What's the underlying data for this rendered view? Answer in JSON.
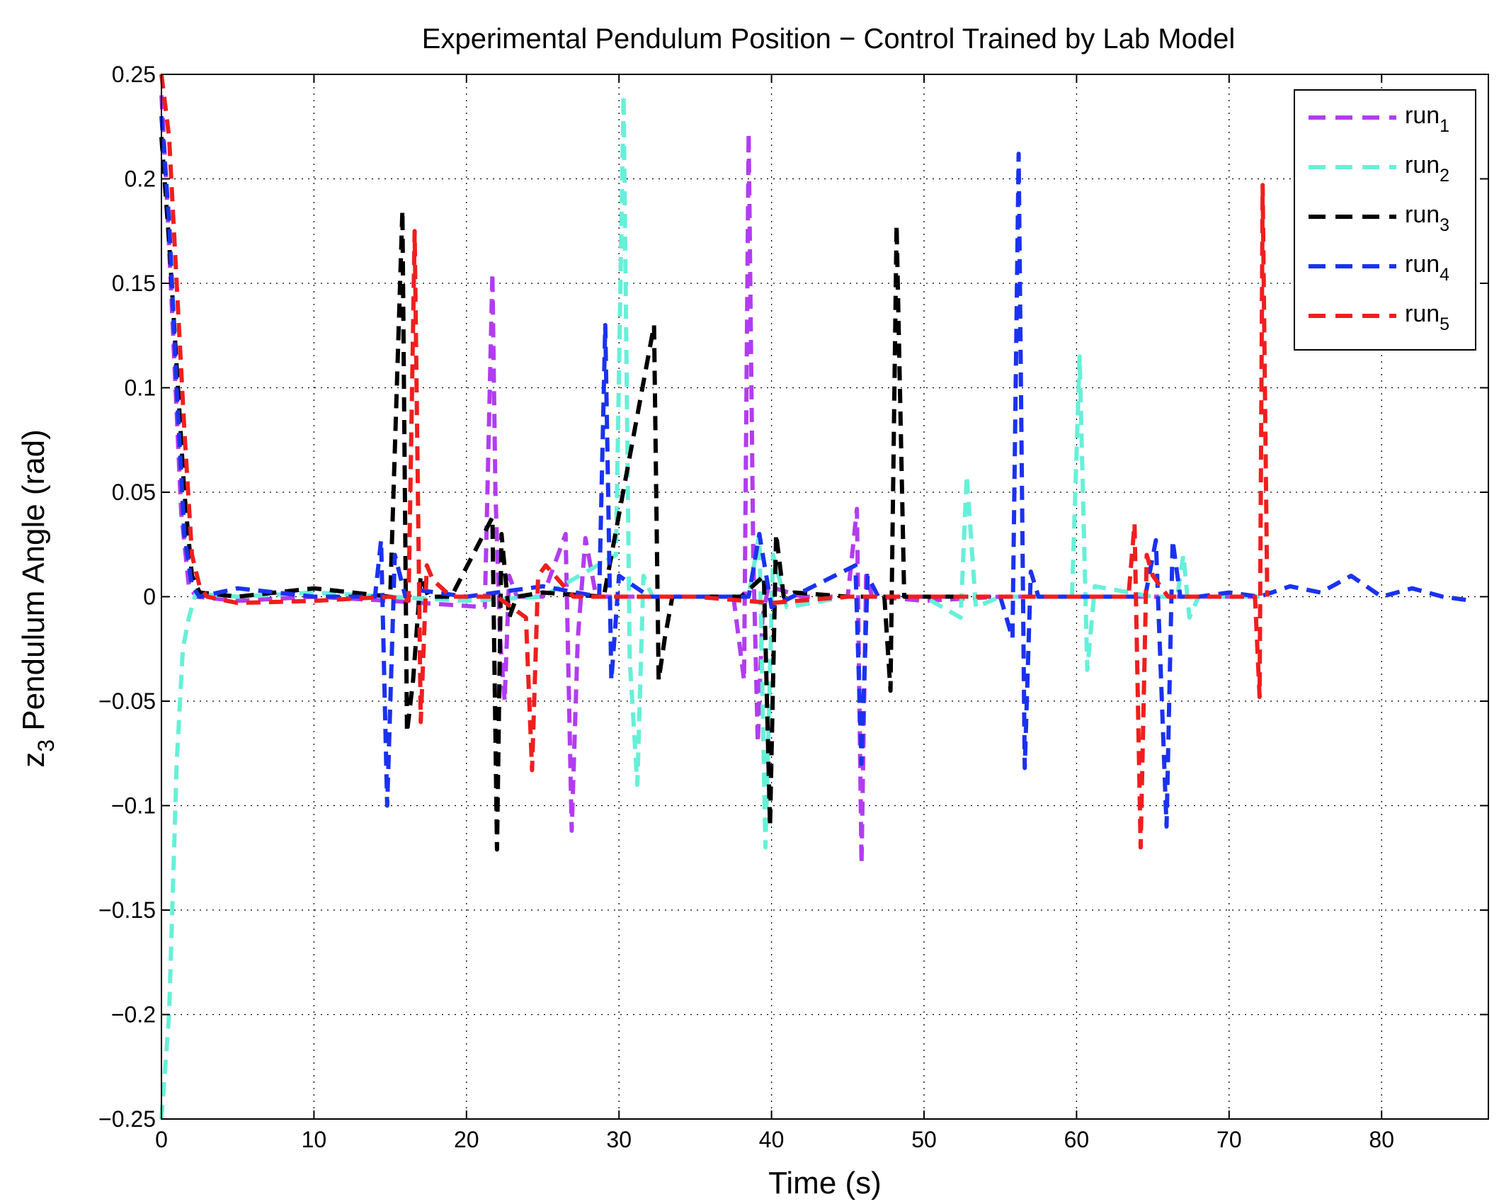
{
  "chart_data": {
    "type": "line",
    "title": "Experimental Pendulum Position − Control Trained by Lab Model",
    "xlabel": "Time (s)",
    "ylabel": {
      "base": "z",
      "sub": "3",
      "rest": " Pendulum Angle (rad)"
    },
    "xlim": [
      0,
      87
    ],
    "ylim": [
      -0.25,
      0.25
    ],
    "grid": true,
    "legend_position": "top-right",
    "x_ticks": [
      0,
      10,
      20,
      30,
      40,
      50,
      60,
      70,
      80
    ],
    "x_tick_labels": [
      "0",
      "10",
      "20",
      "30",
      "40",
      "50",
      "60",
      "70",
      "80"
    ],
    "y_ticks": [
      0.25,
      0.2,
      0.15,
      0.1,
      0.05,
      0,
      -0.05,
      -0.1,
      -0.15,
      -0.2,
      -0.25
    ],
    "y_tick_labels": [
      "0.25",
      "0.2",
      "0.15",
      "0.1",
      "0.05",
      "0",
      "−0.05",
      "−0.1",
      "−0.15",
      "−0.2",
      "−0.25"
    ],
    "series": [
      {
        "name": "run",
        "sub": "1",
        "color": "#b23cf0",
        "x": [
          0,
          0.3,
          0.8,
          1.3,
          1.8,
          2.3,
          5,
          10,
          15,
          21.2,
          21.7,
          21.9,
          22.2,
          22.5,
          22.8,
          23.3,
          25,
          26.5,
          26.9,
          27.3,
          27.8,
          28.5,
          30,
          35,
          37.5,
          38.2,
          38.5,
          38.8,
          39.1,
          39.4,
          39.8,
          42,
          45,
          45.6,
          45.9,
          46.2,
          46.6,
          47,
          50,
          55,
          60,
          65,
          70,
          72
        ],
        "y": [
          0.24,
          0.2,
          0.12,
          0.04,
          0.005,
          0,
          -0.002,
          0,
          -0.002,
          -0.005,
          0.155,
          0.05,
          -0.02,
          -0.05,
          0.01,
          0,
          0,
          0.03,
          -0.112,
          -0.02,
          0.028,
          0,
          0,
          0,
          0,
          -0.04,
          0.222,
          0.02,
          -0.07,
          -0.01,
          0.005,
          0,
          0,
          0.042,
          -0.128,
          0.01,
          0,
          0,
          -0.002,
          0,
          0,
          0,
          0,
          0
        ]
      },
      {
        "name": "run",
        "sub": "2",
        "color": "#66f0d8",
        "x": [
          0,
          0.5,
          1,
          1.4,
          1.8,
          2.3,
          3,
          5,
          10,
          15,
          20,
          25,
          29.8,
          30.3,
          30.7,
          31.2,
          31.6,
          32.2,
          35,
          38.5,
          39.2,
          39.6,
          40.1,
          41,
          45,
          50,
          52.4,
          52.8,
          53.4,
          55,
          59.7,
          60.2,
          60.7,
          61.2,
          65,
          66.6,
          67,
          67.4,
          68,
          70,
          72
        ],
        "y": [
          -0.25,
          -0.2,
          -0.08,
          -0.025,
          -0.01,
          0.003,
          0.001,
          0,
          0.002,
          0,
          -0.002,
          0,
          0.02,
          0.24,
          -0.03,
          -0.09,
          0.01,
          0,
          0,
          0,
          0.03,
          -0.12,
          0.02,
          -0.005,
          0,
          0,
          -0.01,
          0.058,
          -0.005,
          0,
          0,
          0.115,
          -0.035,
          0.005,
          0,
          0,
          0.02,
          -0.01,
          0,
          0,
          0
        ]
      },
      {
        "name": "run",
        "sub": "3",
        "color": "#000000",
        "x": [
          0,
          0.5,
          1,
          1.5,
          2,
          2.5,
          5,
          10,
          15,
          15.8,
          16.1,
          16.5,
          17,
          17.5,
          19,
          21.7,
          22,
          22.3,
          22.8,
          23.3,
          25,
          29,
          32.3,
          32.6,
          33,
          33.5,
          35,
          38,
          39.5,
          39.9,
          40.3,
          40.8,
          41.5,
          45,
          47.4,
          47.8,
          48.2,
          48.7,
          50,
          52
        ],
        "y": [
          0.22,
          0.17,
          0.11,
          0.05,
          0.01,
          0.002,
          0,
          0.004,
          0,
          0.185,
          -0.065,
          -0.04,
          0.01,
          0,
          0,
          0.038,
          -0.121,
          0.03,
          -0.01,
          0,
          0.002,
          0,
          0.13,
          -0.04,
          -0.02,
          0,
          0,
          0,
          0.01,
          -0.11,
          0.03,
          0,
          0.002,
          0,
          0,
          -0.045,
          0.178,
          0,
          0,
          0
        ]
      },
      {
        "name": "run",
        "sub": "4",
        "color": "#1a32f0",
        "x": [
          0,
          0.5,
          1,
          1.5,
          2,
          2.5,
          5,
          10,
          14,
          14.4,
          14.8,
          15.3,
          16,
          17,
          20,
          25,
          28.7,
          29.1,
          29.5,
          30,
          32,
          37,
          38.5,
          39.2,
          40,
          45.5,
          45.9,
          46.3,
          47,
          48,
          50,
          55,
          55.8,
          56.2,
          56.6,
          57,
          57.5,
          60,
          63,
          64.5,
          65.2,
          65.9,
          66.3,
          66.8,
          68,
          70,
          72,
          74,
          76,
          78,
          80,
          82,
          84,
          86
        ],
        "y": [
          0.23,
          0.18,
          0.1,
          0.03,
          0.005,
          0,
          0.004,
          0,
          0,
          0.027,
          -0.1,
          0.02,
          0,
          0.003,
          0,
          0.005,
          0,
          0.13,
          -0.04,
          0.01,
          0,
          0,
          0,
          0.03,
          -0.005,
          0.015,
          -0.08,
          0.01,
          0,
          0,
          0,
          0,
          -0.02,
          0.212,
          -0.082,
          0.012,
          0,
          0,
          0,
          0,
          0.027,
          -0.11,
          0.027,
          0,
          0,
          0.002,
          0,
          0.005,
          0.002,
          0.01,
          0,
          0.004,
          0,
          -0.002
        ]
      },
      {
        "name": "run",
        "sub": "5",
        "color": "#f01e1e",
        "x": [
          0,
          0.5,
          1,
          1.5,
          2,
          2.5,
          3,
          5,
          10,
          15,
          16.2,
          16.6,
          17,
          17.4,
          17.8,
          19,
          22,
          23.9,
          24.3,
          24.7,
          25.2,
          27,
          30,
          35,
          40,
          45,
          50,
          55,
          60,
          63.4,
          63.8,
          64.2,
          64.6,
          65,
          66,
          70,
          71.7,
          72,
          72.2,
          72.5
        ],
        "y": [
          0.25,
          0.22,
          0.15,
          0.08,
          0.02,
          0.005,
          0,
          -0.003,
          -0.002,
          0,
          -0.002,
          0.175,
          -0.06,
          0.015,
          0.008,
          0,
          0,
          -0.01,
          -0.083,
          0.01,
          0.015,
          0,
          0,
          0,
          -0.003,
          0,
          0,
          0,
          0,
          0,
          0.035,
          -0.12,
          0.02,
          0.01,
          0,
          0,
          0,
          -0.048,
          0.197,
          0
        ]
      }
    ]
  }
}
